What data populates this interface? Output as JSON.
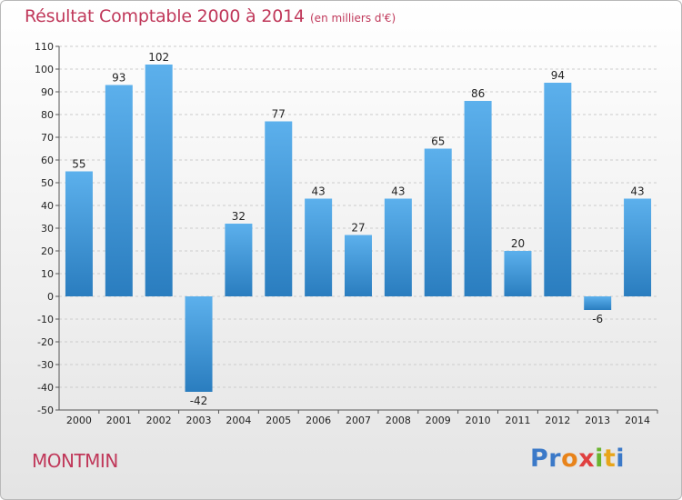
{
  "chart_data": {
    "type": "bar",
    "title": "Résultat Comptable 2000 à 2014",
    "subtitle": "(en milliers d'€)",
    "categories": [
      "2000",
      "2001",
      "2002",
      "2003",
      "2004",
      "2005",
      "2006",
      "2007",
      "2008",
      "2009",
      "2010",
      "2011",
      "2012",
      "2013",
      "2014"
    ],
    "values": [
      55,
      93,
      102,
      -42,
      32,
      77,
      43,
      27,
      43,
      65,
      86,
      20,
      94,
      -6,
      43
    ],
    "ylim": [
      -50,
      110
    ],
    "yticks": [
      110,
      100,
      90,
      80,
      70,
      60,
      50,
      40,
      30,
      20,
      10,
      0,
      -10,
      -20,
      -30,
      -40,
      -50
    ],
    "grid": "horizontal dashed",
    "colors": {
      "bar_light": "#5cb0ec",
      "bar_dark": "#2a7dbf",
      "grid": "#cccccc",
      "axis": "#555555"
    }
  },
  "commune": "MONTMIN",
  "brand": {
    "letters": [
      "P",
      "r",
      "o",
      "x",
      "i",
      "t",
      "i"
    ],
    "colors": [
      "#3b79c8",
      "#3b79c8",
      "#e8831a",
      "#e04040",
      "#6ab42e",
      "#e8a51a",
      "#3b79c8"
    ]
  },
  "text_color": "#c0385a"
}
